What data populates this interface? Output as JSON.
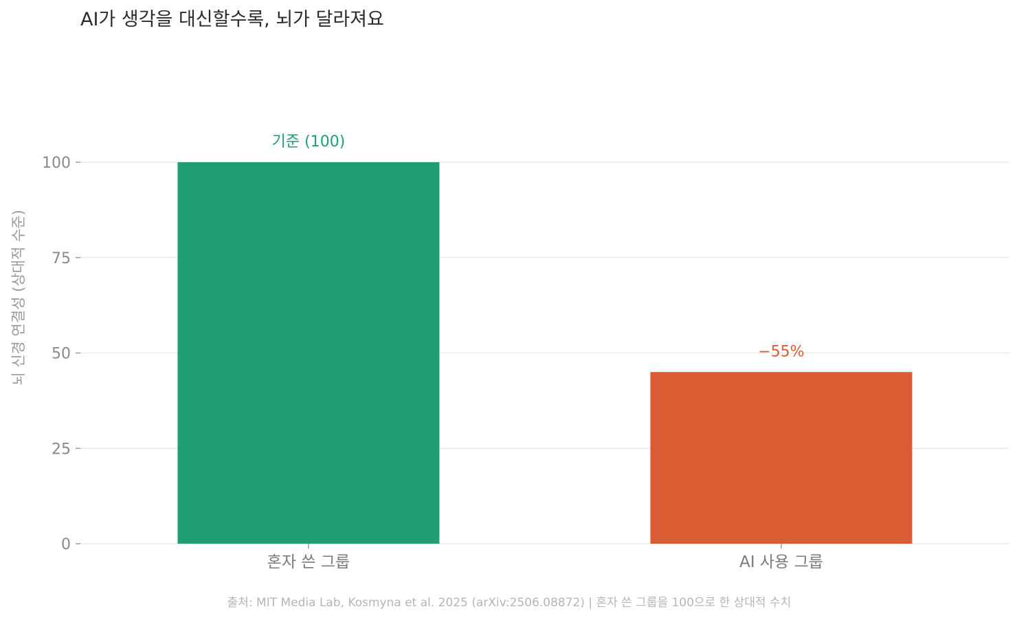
{
  "chart_data": {
    "type": "bar",
    "title": "AI가 생각을 대신할수록, 뇌가 달라져요",
    "ylabel": "뇌 신경 연결성 (상대적 수준)",
    "xlabel": "",
    "ylim": [
      0,
      100
    ],
    "yticks": [
      0,
      25,
      50,
      75,
      100
    ],
    "ytick_labels": [
      "0",
      "25",
      "50",
      "75",
      "100"
    ],
    "categories": [
      "혼자 쓴 그룹",
      "AI 사용 그룹"
    ],
    "values": [
      100,
      45
    ],
    "bar_labels": [
      "기준 (100)",
      "−55%"
    ],
    "colors": [
      "#1f9e74",
      "#d95c33"
    ],
    "grid": true,
    "source": "출처: MIT Media Lab, Kosmyna et al. 2025 (arXiv:2506.08872)  |  혼자 쓴 그룹을 100으로 한 상대적 수치"
  }
}
